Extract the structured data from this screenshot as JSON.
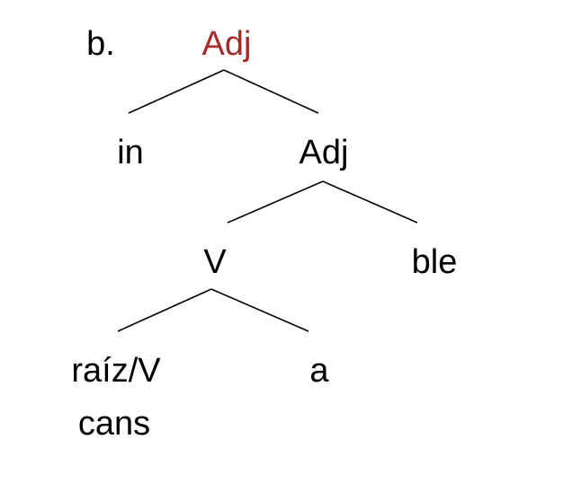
{
  "example_label": "b.",
  "colors": {
    "root_label": "#a52a2a",
    "text": "#000000",
    "background": "#ffffff"
  },
  "tree": {
    "root": "Adj",
    "left_child": "in",
    "right_child": "Adj",
    "adj_left_child": "V",
    "adj_right_child": "ble",
    "v_left_child": "raíz/V",
    "v_left_child_word": "cans",
    "v_right_child": "a"
  }
}
